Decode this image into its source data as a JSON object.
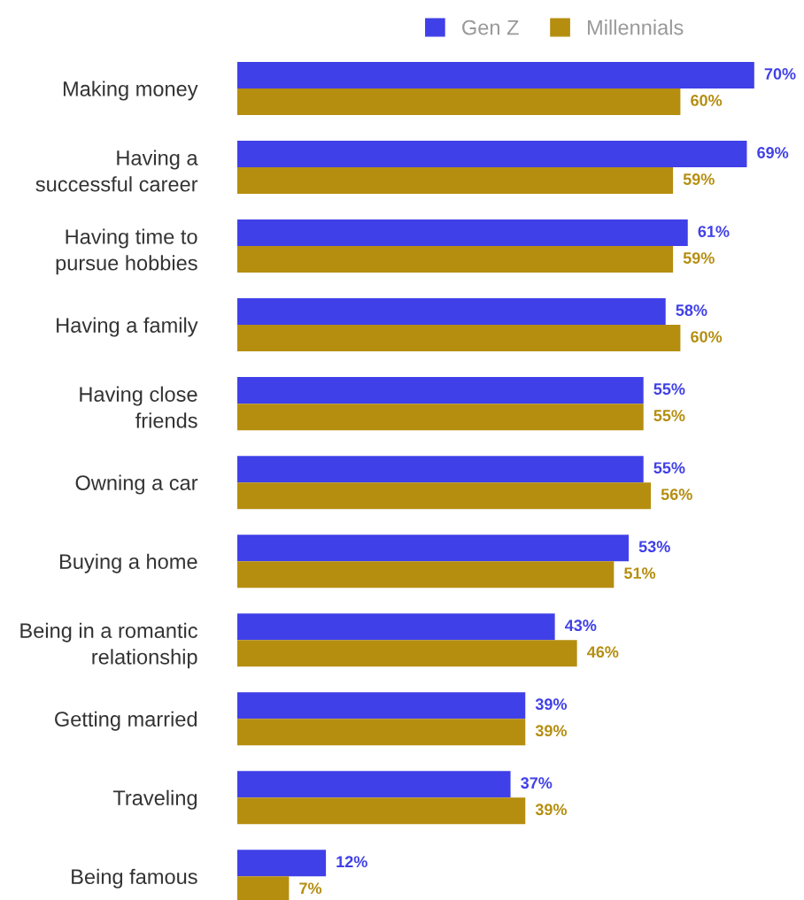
{
  "chart_data": {
    "type": "bar",
    "orientation": "horizontal",
    "categories": [
      "Making money",
      "Having a\nsuccessful career",
      "Having time to\npursue hobbies",
      "Having a family",
      "Having close\nfriends",
      "Owning a car",
      "Buying a home",
      "Being in a romantic\nrelationship",
      "Getting married",
      "Traveling",
      "Being famous"
    ],
    "series": [
      {
        "name": "Gen Z",
        "color": "#4040e8",
        "values": [
          70,
          69,
          61,
          58,
          55,
          55,
          53,
          43,
          39,
          37,
          12
        ],
        "value_labels": [
          "70%",
          "69%",
          "61%",
          "58%",
          "55%",
          "55%",
          "53%",
          "43%",
          "39%",
          "37%",
          "12%"
        ]
      },
      {
        "name": "Millennials",
        "color": "#b58e10",
        "values": [
          60,
          59,
          59,
          60,
          55,
          56,
          51,
          46,
          39,
          39,
          7
        ],
        "value_labels": [
          "60%",
          "59%",
          "59%",
          "60%",
          "55%",
          "56%",
          "51%",
          "46%",
          "39%",
          "39%",
          "7%"
        ]
      }
    ],
    "tick_labels": "y",
    "legend": "top",
    "grid": false
  }
}
